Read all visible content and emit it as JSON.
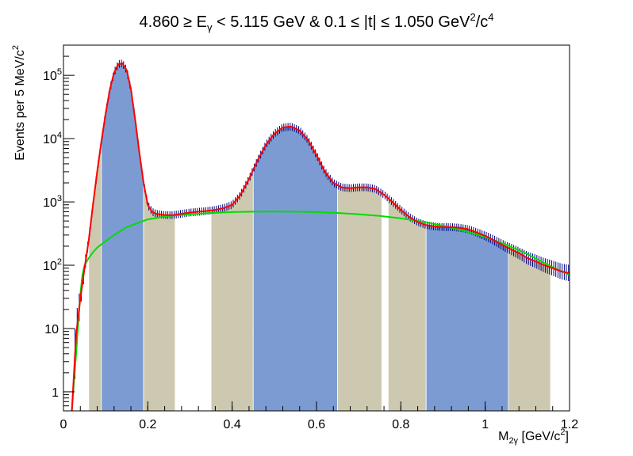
{
  "chart_data": {
    "type": "histogram",
    "title": {
      "main": "4.860 ≥ E",
      "sub_gamma": "γ",
      "mid": " < 5.115 GeV  &  0.1 ≤ |t| ≤ 1.050 GeV",
      "sup2": "2",
      "slash": "/c",
      "sup4": "4"
    },
    "xlabel": {
      "base": "M",
      "sub": "2γ",
      "rest": " [GeV/c",
      "sup": "2",
      "end": "]"
    },
    "ylabel": {
      "base": "Events per 5 MeV/c",
      "sup": "2"
    },
    "xlim": [
      0,
      1.2
    ],
    "ylim": [
      0.5,
      300000
    ],
    "y_scale": "log",
    "x_ticks": [
      0,
      0.2,
      0.4,
      0.6,
      0.8,
      1,
      1.2
    ],
    "x_tick_labels": [
      "0",
      "0.2",
      "0.4",
      "0.6",
      "0.8",
      "1",
      "1.2"
    ],
    "y_ticks": [
      {
        "value": 1,
        "label": "1",
        "exp": ""
      },
      {
        "value": 10,
        "label": "10",
        "exp": ""
      },
      {
        "value": 100,
        "label": "10",
        "exp": "2"
      },
      {
        "value": 1000,
        "label": "10",
        "exp": "3"
      },
      {
        "value": 10000,
        "label": "10",
        "exp": "4"
      },
      {
        "value": 100000,
        "label": "10",
        "exp": "5"
      }
    ],
    "colors": {
      "blue_fill": "#7b9bd2",
      "tan_fill": "#cdc8b0",
      "total_fit": "#ff0000",
      "background_fit": "#00dd00",
      "data_points": "#000080"
    },
    "bands": [
      {
        "x0": 0.06,
        "x1": 0.09,
        "color": "tan"
      },
      {
        "x0": 0.09,
        "x1": 0.19,
        "color": "blue"
      },
      {
        "x0": 0.19,
        "x1": 0.265,
        "color": "tan"
      },
      {
        "x0": 0.35,
        "x1": 0.45,
        "color": "tan"
      },
      {
        "x0": 0.45,
        "x1": 0.65,
        "color": "blue"
      },
      {
        "x0": 0.65,
        "x1": 0.755,
        "color": "tan"
      },
      {
        "x0": 0.77,
        "x1": 0.86,
        "color": "tan"
      },
      {
        "x0": 0.86,
        "x1": 1.055,
        "color": "blue"
      },
      {
        "x0": 1.055,
        "x1": 1.155,
        "color": "tan"
      }
    ],
    "total_fit": {
      "x": [
        0.02,
        0.03,
        0.04,
        0.05,
        0.06,
        0.07,
        0.08,
        0.09,
        0.1,
        0.11,
        0.12,
        0.13,
        0.14,
        0.15,
        0.16,
        0.17,
        0.18,
        0.19,
        0.2,
        0.21,
        0.22,
        0.24,
        0.26,
        0.28,
        0.3,
        0.32,
        0.34,
        0.36,
        0.38,
        0.4,
        0.42,
        0.44,
        0.46,
        0.48,
        0.5,
        0.52,
        0.54,
        0.56,
        0.58,
        0.6,
        0.62,
        0.64,
        0.66,
        0.68,
        0.7,
        0.72,
        0.74,
        0.76,
        0.78,
        0.8,
        0.82,
        0.84,
        0.86,
        0.88,
        0.9,
        0.92,
        0.94,
        0.96,
        0.98,
        1.0,
        1.02,
        1.04,
        1.06,
        1.08,
        1.1,
        1.12,
        1.14,
        1.16,
        1.18,
        1.2
      ],
      "y": [
        0.5,
        8,
        30,
        90,
        250,
        900,
        3000,
        9000,
        25000,
        60000,
        110000,
        150000,
        155000,
        120000,
        60000,
        20000,
        6000,
        2000,
        900,
        700,
        650,
        620,
        620,
        650,
        680,
        700,
        720,
        750,
        800,
        900,
        1300,
        2300,
        4500,
        8000,
        12000,
        15000,
        15500,
        13500,
        9500,
        5500,
        3000,
        2000,
        1700,
        1650,
        1700,
        1700,
        1600,
        1300,
        1000,
        750,
        580,
        480,
        430,
        410,
        400,
        400,
        390,
        370,
        330,
        290,
        250,
        210,
        180,
        155,
        130,
        115,
        100,
        90,
        80,
        75
      ]
    },
    "background_fit": {
      "x": [
        0.02,
        0.025,
        0.03,
        0.035,
        0.04,
        0.045,
        0.05,
        0.06,
        0.07,
        0.08,
        0.1,
        0.12,
        0.15,
        0.2,
        0.25,
        0.3,
        0.35,
        0.4,
        0.45,
        0.5,
        0.55,
        0.6,
        0.65,
        0.7,
        0.75,
        0.8,
        0.85,
        0.9,
        0.95,
        1.0,
        1.05,
        1.1,
        1.15,
        1.2
      ],
      "y": [
        0.5,
        1.5,
        4,
        12,
        35,
        70,
        100,
        130,
        160,
        190,
        240,
        300,
        400,
        530,
        600,
        640,
        670,
        690,
        700,
        705,
        700,
        690,
        670,
        640,
        600,
        550,
        490,
        420,
        350,
        280,
        210,
        150,
        100,
        70
      ]
    }
  }
}
